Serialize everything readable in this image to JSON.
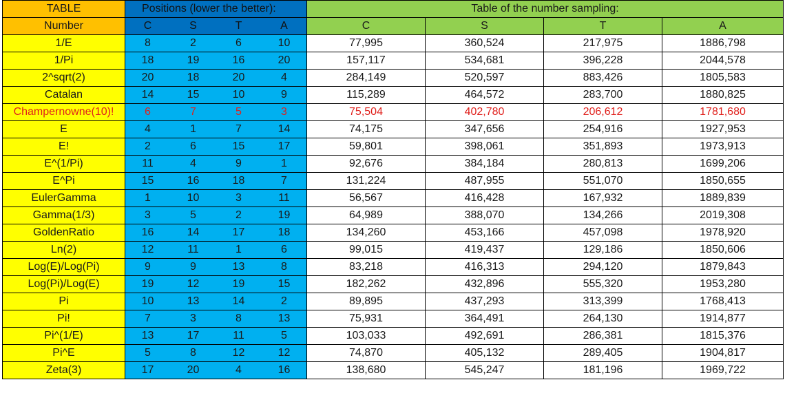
{
  "header": {
    "table_label": "TABLE",
    "number_label": "Number",
    "positions_title": "Positions (lower the better):",
    "sampling_title": "Table of the number sampling:",
    "columns": [
      "C",
      "S",
      "T",
      "A"
    ]
  },
  "colors": {
    "name_column": "#ffff00",
    "name_header": "#ffc000",
    "positions_header": "#0070c0",
    "positions_cells": "#00b0f0",
    "sampling_header": "#92d050",
    "highlight_text": "#e0201c"
  },
  "highlight_row": "Champernowne(10)!",
  "rows": [
    {
      "name": "1/E",
      "pos": [
        "8",
        "2",
        "6",
        "10"
      ],
      "samp": [
        "77,995",
        "360,524",
        "217,975",
        "1886,798"
      ]
    },
    {
      "name": "1/Pi",
      "pos": [
        "18",
        "19",
        "16",
        "20"
      ],
      "samp": [
        "157,117",
        "534,681",
        "396,228",
        "2044,578"
      ]
    },
    {
      "name": "2^sqrt(2)",
      "pos": [
        "20",
        "18",
        "20",
        "4"
      ],
      "samp": [
        "284,149",
        "520,597",
        "883,426",
        "1805,583"
      ]
    },
    {
      "name": "Catalan",
      "pos": [
        "14",
        "15",
        "10",
        "9"
      ],
      "samp": [
        "115,289",
        "464,572",
        "283,700",
        "1880,825"
      ]
    },
    {
      "name": "Champernowne(10)!",
      "pos": [
        "6",
        "7",
        "5",
        "3"
      ],
      "samp": [
        "75,504",
        "402,780",
        "206,612",
        "1781,680"
      ]
    },
    {
      "name": "E",
      "pos": [
        "4",
        "1",
        "7",
        "14"
      ],
      "samp": [
        "74,175",
        "347,656",
        "254,916",
        "1927,953"
      ]
    },
    {
      "name": "E!",
      "pos": [
        "2",
        "6",
        "15",
        "17"
      ],
      "samp": [
        "59,801",
        "398,061",
        "351,893",
        "1973,913"
      ]
    },
    {
      "name": "E^(1/Pi)",
      "pos": [
        "11",
        "4",
        "9",
        "1"
      ],
      "samp": [
        "92,676",
        "384,184",
        "280,813",
        "1699,206"
      ]
    },
    {
      "name": "E^Pi",
      "pos": [
        "15",
        "16",
        "18",
        "7"
      ],
      "samp": [
        "131,224",
        "487,955",
        "551,070",
        "1850,655"
      ]
    },
    {
      "name": "EulerGamma",
      "pos": [
        "1",
        "10",
        "3",
        "11"
      ],
      "samp": [
        "56,567",
        "416,428",
        "167,932",
        "1889,839"
      ]
    },
    {
      "name": "Gamma(1/3)",
      "pos": [
        "3",
        "5",
        "2",
        "19"
      ],
      "samp": [
        "64,989",
        "388,070",
        "134,266",
        "2019,308"
      ]
    },
    {
      "name": "GoldenRatio",
      "pos": [
        "16",
        "14",
        "17",
        "18"
      ],
      "samp": [
        "134,260",
        "453,166",
        "457,098",
        "1978,920"
      ]
    },
    {
      "name": "Ln(2)",
      "pos": [
        "12",
        "11",
        "1",
        "6"
      ],
      "samp": [
        "99,015",
        "419,437",
        "129,186",
        "1850,606"
      ]
    },
    {
      "name": "Log(E)/Log(Pi)",
      "pos": [
        "9",
        "9",
        "13",
        "8"
      ],
      "samp": [
        "83,218",
        "416,313",
        "294,120",
        "1879,843"
      ]
    },
    {
      "name": "Log(Pi)/Log(E)",
      "pos": [
        "19",
        "12",
        "19",
        "15"
      ],
      "samp": [
        "182,262",
        "432,896",
        "555,320",
        "1953,280"
      ]
    },
    {
      "name": "Pi",
      "pos": [
        "10",
        "13",
        "14",
        "2"
      ],
      "samp": [
        "89,895",
        "437,293",
        "313,399",
        "1768,413"
      ]
    },
    {
      "name": "Pi!",
      "pos": [
        "7",
        "3",
        "8",
        "13"
      ],
      "samp": [
        "75,931",
        "364,491",
        "264,130",
        "1914,877"
      ]
    },
    {
      "name": "Pi^(1/E)",
      "pos": [
        "13",
        "17",
        "11",
        "5"
      ],
      "samp": [
        "103,033",
        "492,691",
        "286,381",
        "1815,376"
      ]
    },
    {
      "name": "Pi^E",
      "pos": [
        "5",
        "8",
        "12",
        "12"
      ],
      "samp": [
        "74,870",
        "405,132",
        "289,405",
        "1904,817"
      ]
    },
    {
      "name": "Zeta(3)",
      "pos": [
        "17",
        "20",
        "4",
        "16"
      ],
      "samp": [
        "138,680",
        "545,247",
        "181,196",
        "1969,722"
      ]
    }
  ]
}
